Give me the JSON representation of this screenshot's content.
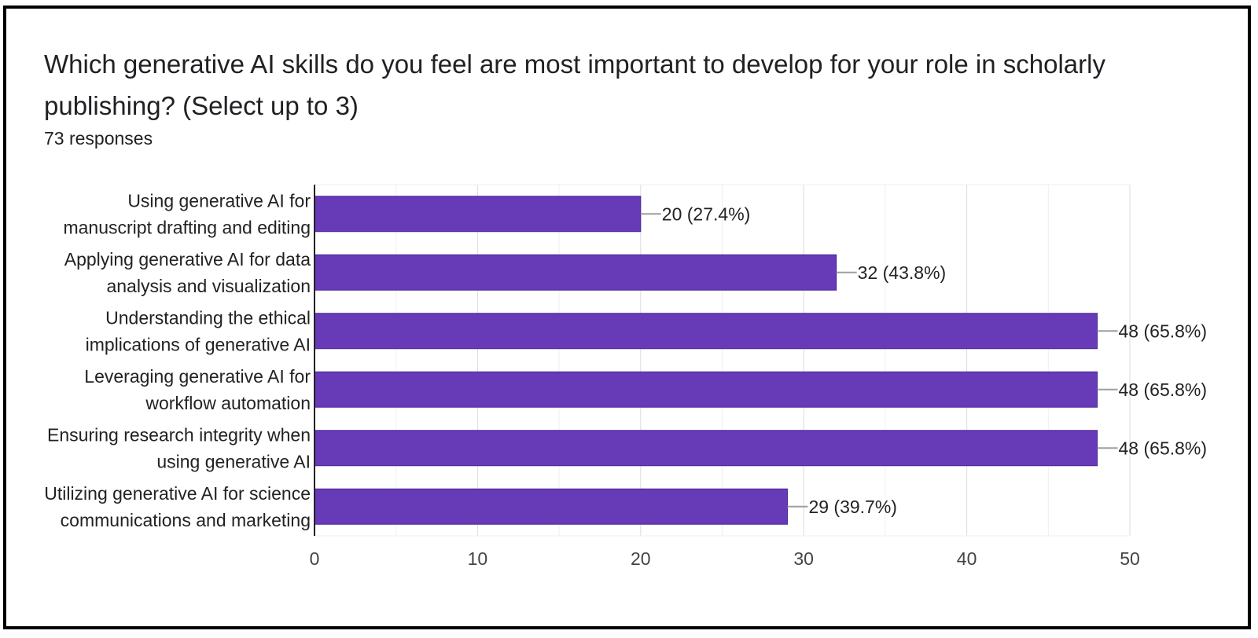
{
  "header": {
    "question": "Which generative AI skills do you feel are most important to develop for your role in scholarly publishing? (Select up to 3)",
    "responses": "73 responses"
  },
  "chart_data": {
    "type": "bar",
    "orientation": "horizontal",
    "total_responses": 73,
    "categories": [
      [
        "Using generative AI for",
        "manuscript drafting and editing"
      ],
      [
        "Applying generative AI for data",
        "analysis and visualization"
      ],
      [
        "Understanding the ethical",
        "implications of generative AI"
      ],
      [
        "Leveraging generative AI for",
        "workflow automation"
      ],
      [
        "Ensuring research integrity when",
        "using generative AI"
      ],
      [
        "Utilizing generative AI for science",
        "communications and marketing"
      ]
    ],
    "values": [
      20,
      32,
      48,
      48,
      48,
      29
    ],
    "data_labels": [
      "20 (27.4%)",
      "32 (43.8%)",
      "48 (65.8%)",
      "48 (65.8%)",
      "48 (65.8%)",
      "29 (39.7%)"
    ],
    "xlim": [
      0,
      50
    ],
    "xticks": [
      0,
      10,
      20,
      30,
      40,
      50
    ],
    "tick_labels": [
      "0",
      "10",
      "20",
      "30",
      "40",
      "50"
    ],
    "grid": true,
    "bar_color": "#673ab7"
  }
}
